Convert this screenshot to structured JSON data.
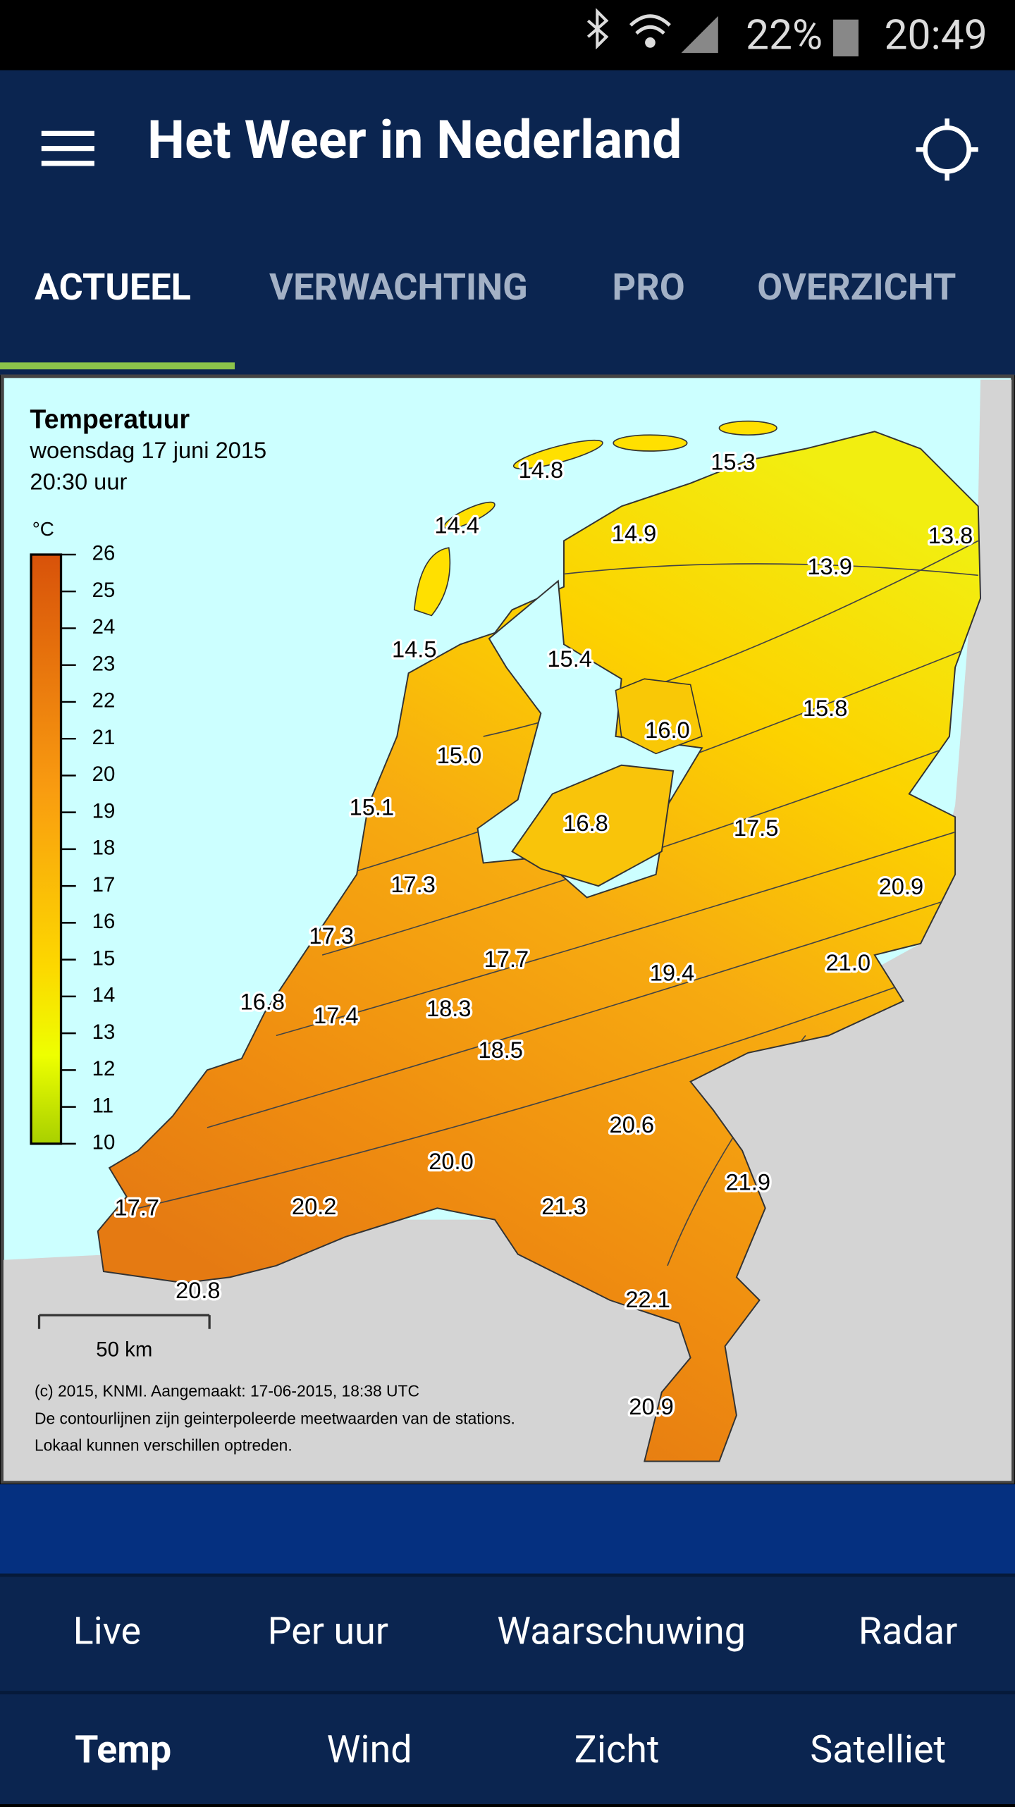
{
  "status_bar": {
    "battery": "22%",
    "time": "20:49"
  },
  "app_bar": {
    "title": "Het Weer in Nederland"
  },
  "tabs": [
    "ACTUEEL",
    "VERWACHTING",
    "PRO",
    "OVERZICHT"
  ],
  "map": {
    "title": "Temperatuur",
    "date": "woensdag 17 juni 2015",
    "time": "20:30 uur",
    "unit": "°C",
    "scale_ticks": [
      26,
      25,
      24,
      23,
      22,
      21,
      20,
      19,
      18,
      17,
      16,
      15,
      14,
      13,
      12,
      11,
      10
    ],
    "stations": [
      "14.8",
      "15.3",
      "14.4",
      "14.9",
      "13.8",
      "13.9",
      "14.5",
      "15.4",
      "16.0",
      "15.8",
      "15.0",
      "15.1",
      "16.8",
      "17.5",
      "17.3",
      "20.9",
      "17.3",
      "17.7",
      "21.0",
      "19.4",
      "16.8",
      "17.4",
      "18.3",
      "18.5",
      "20.6",
      "20.0",
      "21.9",
      "17.7",
      "20.2",
      "21.3",
      "20.8",
      "22.1",
      "20.9"
    ],
    "scale_bar": "50 km",
    "credits": [
      "(c) 2015, KNMI. Aangemaakt: 17-06-2015, 18:38 UTC",
      "De contourlijnen zijn geinterpoleerde meetwaarden van de stations.",
      "Lokaal kunnen verschillen optreden."
    ]
  },
  "nav_primary": [
    "Live",
    "Per uur",
    "Waarschuwing",
    "Radar"
  ],
  "nav_secondary": [
    "Temp",
    "Wind",
    "Zicht",
    "Satelliet"
  ]
}
